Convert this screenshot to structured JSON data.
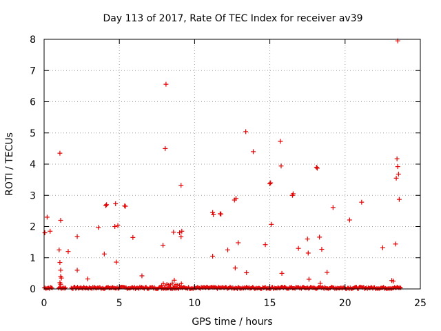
{
  "chart_data": {
    "type": "scatter",
    "title": "Day 113 of 2017, Rate Of TEC Index for receiver av39",
    "xlabel": "GPS time / hours",
    "ylabel": "ROTI / TECUs",
    "xlim": [
      0,
      25
    ],
    "ylim": [
      0,
      8
    ],
    "xticks": [
      "0",
      "5",
      "10",
      "15",
      "20",
      "25"
    ],
    "yticks": [
      "0",
      "1",
      "2",
      "3",
      "4",
      "5",
      "6",
      "7",
      "8"
    ],
    "grid": true,
    "point_color": "#e00000",
    "series": [
      {
        "x": [
          0.05,
          0.2,
          0.4,
          1.0,
          1.05,
          1.1,
          1.05,
          1.1,
          1.1,
          1.15,
          1.05,
          1.1,
          1.6,
          2.2,
          2.2,
          2.9,
          3.6,
          4.0,
          4.1,
          4.15,
          4.7,
          4.75,
          4.8,
          4.9,
          5.35,
          5.4,
          5.9,
          6.5,
          7.9,
          8.1,
          8.05,
          8.6,
          8.65,
          9.0,
          9.1,
          9.1,
          9.15,
          11.2,
          11.2,
          11.25,
          11.7,
          11.75,
          12.2,
          12.65,
          12.7,
          12.75,
          12.9,
          13.4,
          13.45,
          13.9,
          14.7,
          15.0,
          15.05,
          15.1,
          15.7,
          15.75,
          15.8,
          16.5,
          16.55,
          16.9,
          17.5,
          17.55,
          17.6,
          18.1,
          18.15,
          18.3,
          18.35,
          18.45,
          18.8,
          19.2,
          20.3,
          21.1,
          22.5,
          23.1,
          23.2,
          23.35,
          23.4,
          23.45,
          23.5,
          23.55,
          23.6
        ],
        "y": [
          1.8,
          2.3,
          1.85,
          1.25,
          0.85,
          0.6,
          4.35,
          2.2,
          0.4,
          0.35,
          0.2,
          0.15,
          1.2,
          0.6,
          1.68,
          0.32,
          1.97,
          1.12,
          2.67,
          2.7,
          2.0,
          2.73,
          0.86,
          2.03,
          2.66,
          2.65,
          1.65,
          0.42,
          1.4,
          6.56,
          4.5,
          1.82,
          0.28,
          1.8,
          1.67,
          3.32,
          1.85,
          1.05,
          2.45,
          2.38,
          2.41,
          2.4,
          1.25,
          2.85,
          0.67,
          2.9,
          1.48,
          5.04,
          0.52,
          4.4,
          1.42,
          3.37,
          3.4,
          2.07,
          4.73,
          3.94,
          0.5,
          3.0,
          3.05,
          1.3,
          1.6,
          1.15,
          0.31,
          3.9,
          3.87,
          1.66,
          0.18,
          1.27,
          0.53,
          2.61,
          2.21,
          2.78,
          1.32,
          0.27,
          0.25,
          1.44,
          3.55,
          4.17,
          3.92,
          3.68,
          2.87
        ]
      }
    ]
  }
}
